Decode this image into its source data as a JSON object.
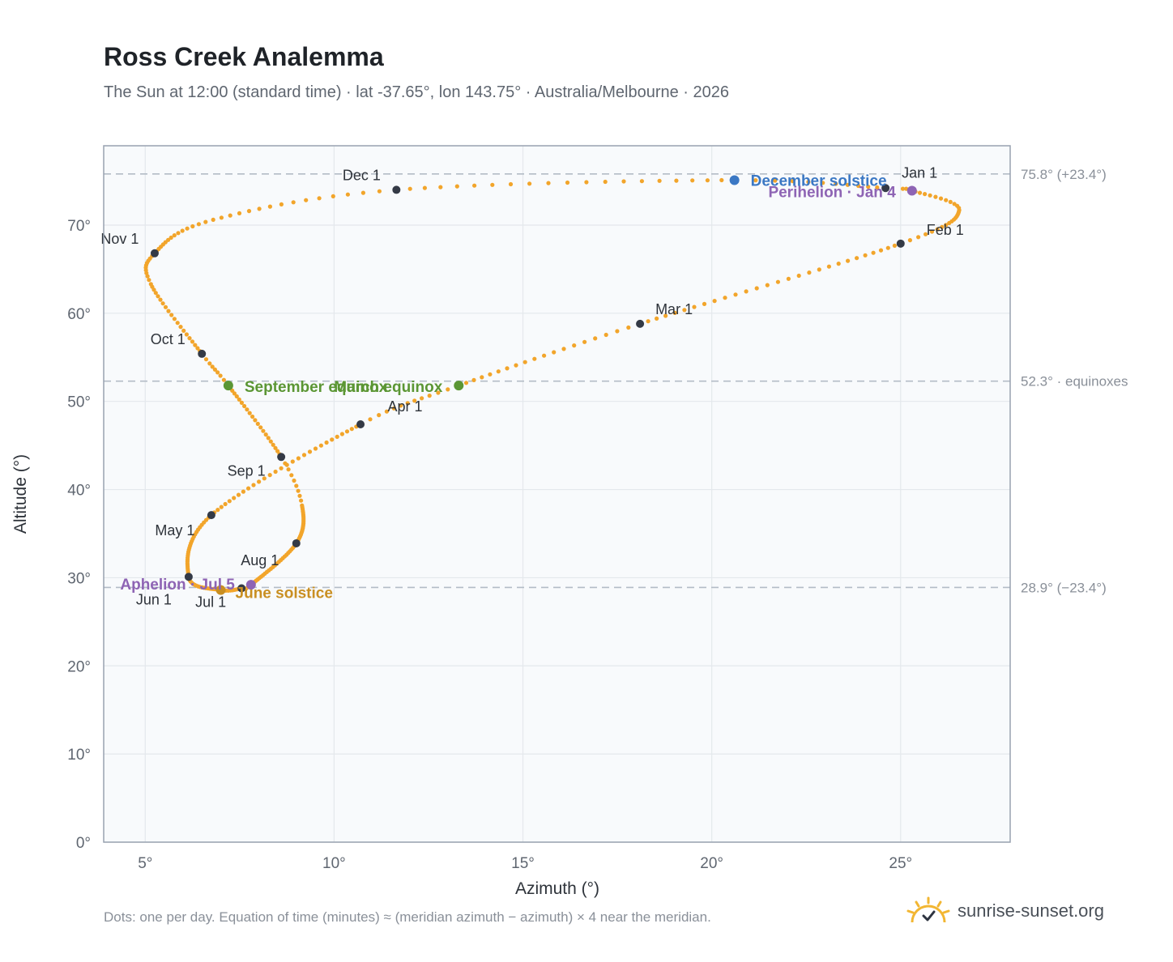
{
  "header": {
    "title": "Ross Creek Analemma",
    "subtitle": "The Sun at 12:00 (standard time) · lat -37.65°, lon 143.75° · Australia/Melbourne · 2026"
  },
  "footer": {
    "note": "Dots: one per day. Equation of time (minutes) ≈ (meridian azimuth − azimuth) × 4 near the meridian.",
    "brand": "sunrise-sunset.org"
  },
  "colors": {
    "curve": "#f2a52b",
    "month_marker": "#343a46",
    "december_solstice": "#3b78c4",
    "june_solstice": "#c98f22",
    "equinox": "#5b9634",
    "perihelion_aphelion": "#8e64b4",
    "reference_line": "#b3bcc6",
    "plot_background": "#f8fafc",
    "grid": "#e4e8ec",
    "frame": "#98a2b0"
  },
  "chart_data": {
    "type": "scatter",
    "xlabel": "Azimuth (°)",
    "ylabel": "Altitude (°)",
    "xlim": [
      3.9,
      27.9
    ],
    "ylim": [
      0,
      79
    ],
    "xticks": [
      5,
      10,
      15,
      20,
      25
    ],
    "xtick_labels": [
      "5°",
      "10°",
      "15°",
      "20°",
      "25°"
    ],
    "yticks": [
      0,
      10,
      20,
      30,
      40,
      50,
      60,
      70
    ],
    "ytick_labels": [
      "0°",
      "10°",
      "20°",
      "30°",
      "40°",
      "50°",
      "60°",
      "70°"
    ],
    "grid": true,
    "reference_lines": [
      {
        "y": 75.8,
        "label": "75.8° (+23.4°)"
      },
      {
        "y": 52.3,
        "label": "52.3° · equinoxes"
      },
      {
        "y": 28.9,
        "label": "28.9° (−23.4°)"
      }
    ],
    "path_keypoints": [
      {
        "day": 1,
        "az": 24.6,
        "alt": 74.2
      },
      {
        "day": 4,
        "az": 25.3,
        "alt": 73.9
      },
      {
        "day": 16,
        "az": 26.55,
        "alt": 71.7
      },
      {
        "day": 32,
        "az": 25.0,
        "alt": 67.9
      },
      {
        "day": 60,
        "az": 18.1,
        "alt": 58.8
      },
      {
        "day": 79,
        "az": 13.3,
        "alt": 51.8
      },
      {
        "day": 91,
        "az": 10.7,
        "alt": 47.4
      },
      {
        "day": 121,
        "az": 6.75,
        "alt": 37.1
      },
      {
        "day": 152,
        "az": 6.15,
        "alt": 30.1
      },
      {
        "day": 172,
        "az": 7.0,
        "alt": 28.6
      },
      {
        "day": 182,
        "az": 7.55,
        "alt": 28.8
      },
      {
        "day": 186,
        "az": 7.8,
        "alt": 29.2
      },
      {
        "day": 213,
        "az": 9.0,
        "alt": 33.9
      },
      {
        "day": 235,
        "az": 9.15,
        "alt": 38.2
      },
      {
        "day": 244,
        "az": 8.6,
        "alt": 43.7
      },
      {
        "day": 266,
        "az": 7.2,
        "alt": 51.8
      },
      {
        "day": 274,
        "az": 6.5,
        "alt": 55.4
      },
      {
        "day": 294,
        "az": 5.15,
        "alt": 63.3
      },
      {
        "day": 305,
        "az": 5.25,
        "alt": 66.8
      },
      {
        "day": 320,
        "az": 6.8,
        "alt": 70.6
      },
      {
        "day": 335,
        "az": 11.65,
        "alt": 74.0
      },
      {
        "day": 355,
        "az": 20.6,
        "alt": 75.1
      },
      {
        "day": 366,
        "az": 24.6,
        "alt": 74.2
      }
    ],
    "month_markers": [
      {
        "label": "Jan 1",
        "az": 24.6,
        "alt": 74.2
      },
      {
        "label": "Feb 1",
        "az": 25.0,
        "alt": 67.9
      },
      {
        "label": "Mar 1",
        "az": 18.1,
        "alt": 58.8
      },
      {
        "label": "Apr 1",
        "az": 10.7,
        "alt": 47.4
      },
      {
        "label": "May 1",
        "az": 6.75,
        "alt": 37.1
      },
      {
        "label": "Jun 1",
        "az": 6.15,
        "alt": 30.1
      },
      {
        "label": "Jul 1",
        "az": 7.55,
        "alt": 28.8
      },
      {
        "label": "Aug 1",
        "az": 9.0,
        "alt": 33.9
      },
      {
        "label": "Sep 1",
        "az": 8.6,
        "alt": 43.7
      },
      {
        "label": "Oct 1",
        "az": 6.5,
        "alt": 55.4
      },
      {
        "label": "Nov 1",
        "az": 5.25,
        "alt": 66.8
      },
      {
        "label": "Dec 1",
        "az": 11.65,
        "alt": 74.0
      }
    ],
    "events": [
      {
        "label": "December solstice",
        "az": 20.6,
        "alt": 75.1,
        "color_key": "december_solstice"
      },
      {
        "label": "Perihelion · Jan 4",
        "az": 25.3,
        "alt": 73.9,
        "color_key": "perihelion_aphelion"
      },
      {
        "label": "March equinox",
        "az": 13.3,
        "alt": 51.8,
        "color_key": "equinox"
      },
      {
        "label": "September equinox",
        "az": 7.2,
        "alt": 51.8,
        "color_key": "equinox"
      },
      {
        "label": "June solstice",
        "az": 7.0,
        "alt": 28.6,
        "color_key": "june_solstice"
      },
      {
        "label": "Aphelion · Jul 5",
        "az": 7.8,
        "alt": 29.2,
        "color_key": "perihelion_aphelion"
      }
    ]
  }
}
